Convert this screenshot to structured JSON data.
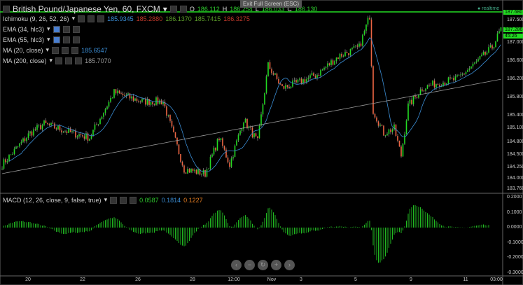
{
  "header": {
    "symbol": "British Pound/Japanese Yen, 60, FXCM",
    "ohlc": {
      "o_label": "O",
      "o": "186.112",
      "h_label": "H",
      "h": "186.254",
      "l_label": "L",
      "l": "186.033",
      "c_label": "C",
      "c": "186.130"
    },
    "exit_fullscreen": "Exit Full Screen (ESC)",
    "realtime": "realtime"
  },
  "indicators": [
    {
      "label": "Ichimoku (9, 26, 52, 26)",
      "values": [
        "185.9345",
        "185.2880",
        "186.1370",
        "185.7415",
        "186.3275"
      ]
    },
    {
      "label": "EMA (34, hlc3)",
      "values": []
    },
    {
      "label": "EMA (55, hlc3)",
      "values": []
    },
    {
      "label": "MA (20, close)",
      "values": [
        "185.6547"
      ]
    },
    {
      "label": "MA (200, close)",
      "values": [
        "185.7070"
      ]
    }
  ],
  "macd": {
    "label": "MACD (12, 26, close, 9, false, true)",
    "values": [
      "0.0587",
      "0.1814",
      "0.1227"
    ]
  },
  "price_axis": {
    "ticks": [
      "187.500",
      "187.000",
      "186.600",
      "186.200",
      "185.800",
      "185.400",
      "185.100",
      "184.800",
      "184.500",
      "184.250",
      "184.000",
      "183.760"
    ],
    "high_line": "187.680",
    "last_price": "187.286",
    "countdown": "45:26"
  },
  "macd_axis": {
    "ticks": [
      "0.2000",
      "0.1000",
      "0.0000",
      "-0.1000",
      "-0.2000",
      "-0.3000"
    ]
  },
  "time_axis": [
    "20",
    "22",
    "26",
    "28",
    "12:00",
    "Nov",
    "3",
    "5",
    "9",
    "11",
    "03:00"
  ],
  "nav_buttons": [
    "‹",
    "−",
    "↻",
    "+",
    "›"
  ],
  "colors": {
    "up": "#22dd22",
    "down": "#ee6644",
    "ma20": "#3b8ed6",
    "ma200": "#999999",
    "macd_hist": "#22bb22"
  },
  "chart_data": {
    "type": "candlestick",
    "title": "British Pound/Japanese Yen, 60, FXCM",
    "ylim": [
      183.76,
      187.68
    ],
    "approx_close_keypoints": {
      "bar": [
        0,
        16,
        24,
        40,
        50,
        64,
        80,
        92,
        104,
        116,
        124,
        130,
        138,
        146,
        152,
        160,
        168,
        180,
        192,
        204,
        210,
        212,
        218,
        224,
        228,
        232,
        240,
        248,
        260,
        272,
        280,
        285
      ],
      "price": [
        184.3,
        185.0,
        185.2,
        185.0,
        184.9,
        185.9,
        185.7,
        185.7,
        184.2,
        184.1,
        184.9,
        184.3,
        185.3,
        184.8,
        186.5,
        186.0,
        186.1,
        186.3,
        186.7,
        186.9,
        187.6,
        185.5,
        185.0,
        185.1,
        184.5,
        185.6,
        186.0,
        186.1,
        186.2,
        186.6,
        186.9,
        187.3
      ]
    },
    "macd_ylim": [
      -0.3,
      0.2
    ]
  }
}
